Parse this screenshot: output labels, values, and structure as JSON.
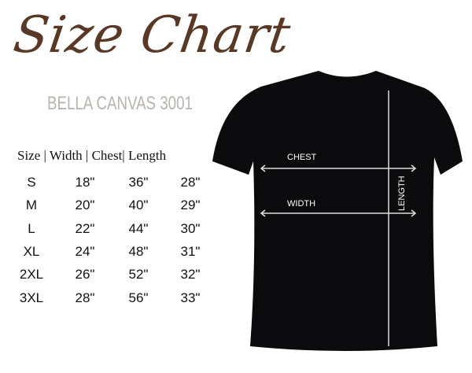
{
  "title": "Size Chart",
  "subtitle": "BELLA CANVAS 3001",
  "table": {
    "header": "Size | Width | Chest| Length",
    "columns": [
      "Size",
      "Width",
      "Chest",
      "Length"
    ],
    "rows": [
      [
        "S",
        "18\"",
        "36\"",
        "28\""
      ],
      [
        "M",
        "20\"",
        "40\"",
        "29\""
      ],
      [
        "L",
        "22\"",
        "44\"",
        "30\""
      ],
      [
        "XL",
        "24\"",
        "48\"",
        "31\""
      ],
      [
        "2XL",
        "26\"",
        "52\"",
        "32\""
      ],
      [
        "3XL",
        "28\"",
        "56\"",
        "33\""
      ]
    ]
  },
  "diagram": {
    "chest": "CHEST",
    "width": "WIDTH",
    "length": "LENGTH",
    "shirt_color": "#0b0b0e",
    "title_color": "#5a3826"
  }
}
